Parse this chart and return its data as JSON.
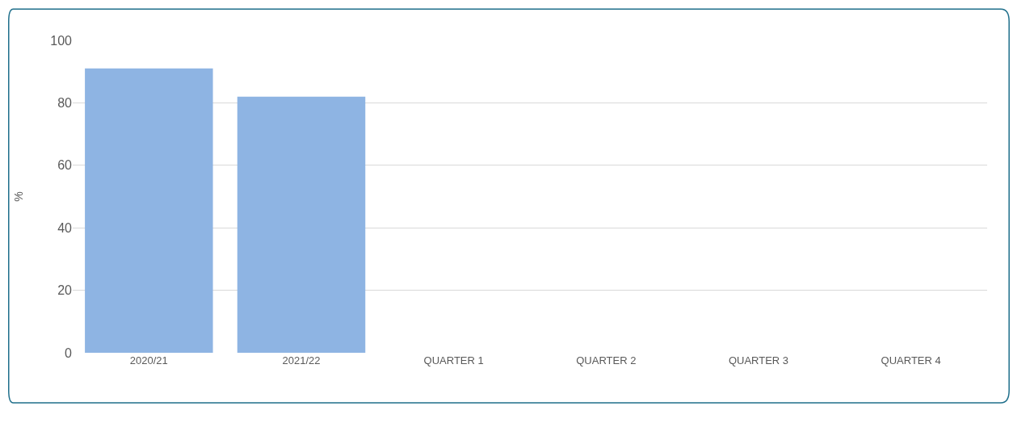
{
  "chart_data": {
    "type": "bar",
    "ylabel": "%",
    "categories": [
      "2020/21",
      "2021/22",
      "QUARTER 1",
      "QUARTER 2",
      "QUARTER 3",
      "QUARTER 4"
    ],
    "values": [
      91,
      82,
      null,
      null,
      null,
      null
    ],
    "color": "#8eb4e3",
    "ylim": [
      0,
      100
    ],
    "yticks": [
      0,
      20,
      40,
      60,
      80,
      100
    ],
    "grid": "y",
    "legend": false
  }
}
